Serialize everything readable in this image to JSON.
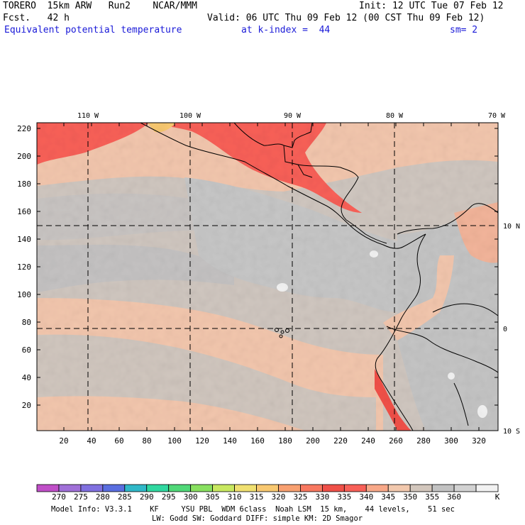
{
  "header": {
    "model": "TORERO  15km ARW   Run2    NCAR/MMM",
    "init": "Init: 12 UTC Tue 07 Feb 12",
    "forecast": "Fcst.   42 h",
    "valid": "Valid: 06 UTC Thu 09 Feb 12 (00 CST Thu 09 Feb 12)",
    "field": "Equivalent potential temperature",
    "level": "at k-index =  44",
    "smoothing": "sm= 2"
  },
  "map": {
    "lon_labels": [
      "110 W",
      "100 W",
      "90 W",
      "80 W",
      "70 W"
    ],
    "lat_labels": [
      "10 N",
      "0",
      "10 S"
    ],
    "y_ticks": [
      "220",
      "200",
      "180",
      "160",
      "140",
      "120",
      "100",
      "80",
      "60",
      "40",
      "20"
    ],
    "x_ticks": [
      "20",
      "40",
      "60",
      "80",
      "100",
      "120",
      "140",
      "160",
      "180",
      "200",
      "220",
      "240",
      "260",
      "280",
      "300",
      "320"
    ],
    "grid_range": {
      "x": [
        0,
        335
      ],
      "y": [
        0,
        224
      ]
    }
  },
  "colorbar": {
    "labels": [
      "270",
      "275",
      "280",
      "285",
      "290",
      "295",
      "300",
      "305",
      "310",
      "315",
      "320",
      "325",
      "330",
      "335",
      "340",
      "345",
      "350",
      "355",
      "360"
    ],
    "unit": "K",
    "colors": [
      "#c04fc8",
      "#a070d8",
      "#8070e0",
      "#5a6ee0",
      "#30b8c8",
      "#30d8a0",
      "#50d878",
      "#88e060",
      "#c8e860",
      "#f0e070",
      "#f8c870",
      "#f8a070",
      "#f87860",
      "#f05048",
      "#f86058",
      "#f8a888",
      "#f2c8ad",
      "#d2c6bc",
      "#c2c2c2",
      "#d2d2d2",
      "#f2f2f2"
    ]
  },
  "footer": {
    "line1": "Model Info: V3.3.1    KF     YSU PBL  WDM 6class  Noah LSM  15 km,    44 levels,    51 sec",
    "line2": "LW: Godd SW: Goddard DIFF: simple KM: 2D Smagor"
  }
}
